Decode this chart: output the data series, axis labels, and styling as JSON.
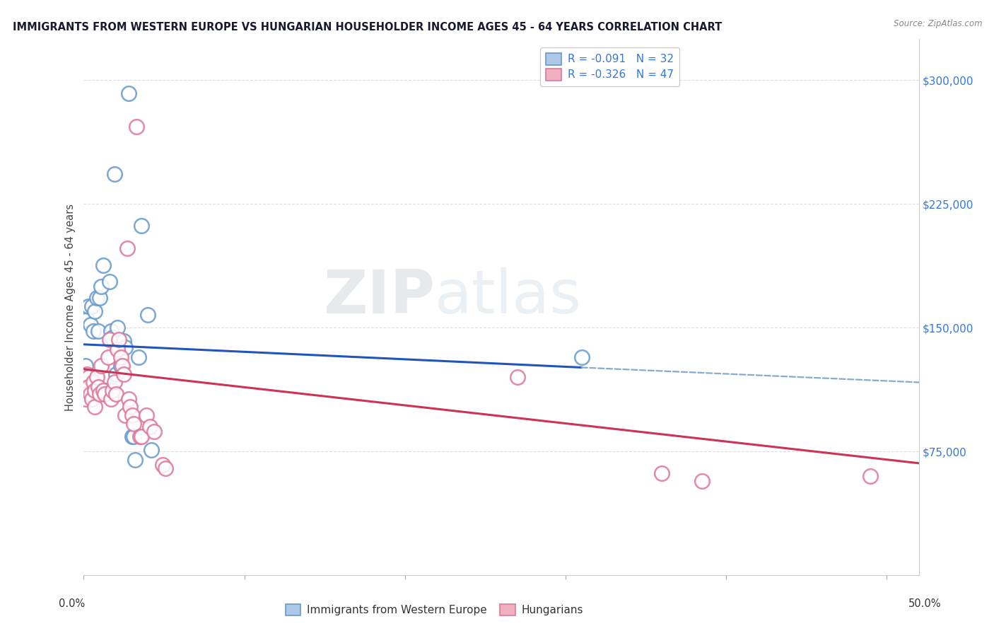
{
  "title": "IMMIGRANTS FROM WESTERN EUROPE VS HUNGARIAN HOUSEHOLDER INCOME AGES 45 - 64 YEARS CORRELATION CHART",
  "source": "Source: ZipAtlas.com",
  "ylabel": "Householder Income Ages 45 - 64 years",
  "ytick_labels": [
    "$75,000",
    "$150,000",
    "$225,000",
    "$300,000"
  ],
  "ytick_values": [
    75000,
    150000,
    225000,
    300000
  ],
  "ylim": [
    0,
    325000
  ],
  "xlim": [
    0.0,
    0.52
  ],
  "legend_r1": "R = -0.091",
  "legend_n1": "N = 32",
  "legend_r2": "R = -0.326",
  "legend_n2": "N = 47",
  "color_blue_face": "#adc8e8",
  "color_blue_edge": "#6699cc",
  "color_pink_face": "#f0b0c0",
  "color_pink_edge": "#dd7799",
  "line_blue": "#2255bb",
  "line_pink": "#cc3355",
  "line_dash_blue": "#88aacc",
  "watermark_zip": "ZIP",
  "watermark_atlas": "atlas",
  "background_color": "#ffffff",
  "grid_color": "#dddddd",
  "blue_points": [
    [
      0.001,
      127000
    ],
    [
      0.002,
      155000
    ],
    [
      0.003,
      163000
    ],
    [
      0.004,
      152000
    ],
    [
      0.005,
      163000
    ],
    [
      0.006,
      148000
    ],
    [
      0.007,
      160000
    ],
    [
      0.008,
      168000
    ],
    [
      0.009,
      148000
    ],
    [
      0.01,
      168000
    ],
    [
      0.011,
      175000
    ],
    [
      0.012,
      188000
    ],
    [
      0.014,
      112000
    ],
    [
      0.016,
      178000
    ],
    [
      0.017,
      148000
    ],
    [
      0.018,
      144000
    ],
    [
      0.019,
      243000
    ],
    [
      0.02,
      122000
    ],
    [
      0.021,
      150000
    ],
    [
      0.022,
      138000
    ],
    [
      0.023,
      127000
    ],
    [
      0.025,
      142000
    ],
    [
      0.026,
      138000
    ],
    [
      0.028,
      292000
    ],
    [
      0.03,
      84000
    ],
    [
      0.031,
      84000
    ],
    [
      0.032,
      70000
    ],
    [
      0.034,
      132000
    ],
    [
      0.036,
      212000
    ],
    [
      0.04,
      158000
    ],
    [
      0.042,
      76000
    ],
    [
      0.31,
      132000
    ]
  ],
  "pink_points": [
    [
      0.001,
      118000
    ],
    [
      0.001,
      113000
    ],
    [
      0.001,
      110000
    ],
    [
      0.001,
      107000
    ],
    [
      0.002,
      122000
    ],
    [
      0.003,
      120000
    ],
    [
      0.003,
      114000
    ],
    [
      0.004,
      110000
    ],
    [
      0.005,
      107000
    ],
    [
      0.006,
      117000
    ],
    [
      0.007,
      112000
    ],
    [
      0.007,
      102000
    ],
    [
      0.008,
      120000
    ],
    [
      0.009,
      114000
    ],
    [
      0.01,
      110000
    ],
    [
      0.011,
      127000
    ],
    [
      0.012,
      112000
    ],
    [
      0.013,
      110000
    ],
    [
      0.015,
      132000
    ],
    [
      0.016,
      143000
    ],
    [
      0.017,
      107000
    ],
    [
      0.018,
      112000
    ],
    [
      0.019,
      117000
    ],
    [
      0.02,
      110000
    ],
    [
      0.021,
      137000
    ],
    [
      0.022,
      143000
    ],
    [
      0.023,
      132000
    ],
    [
      0.024,
      127000
    ],
    [
      0.025,
      122000
    ],
    [
      0.026,
      97000
    ],
    [
      0.027,
      198000
    ],
    [
      0.028,
      107000
    ],
    [
      0.029,
      102000
    ],
    [
      0.03,
      97000
    ],
    [
      0.031,
      92000
    ],
    [
      0.033,
      272000
    ],
    [
      0.035,
      84000
    ],
    [
      0.036,
      84000
    ],
    [
      0.039,
      97000
    ],
    [
      0.041,
      90000
    ],
    [
      0.044,
      87000
    ],
    [
      0.049,
      67000
    ],
    [
      0.051,
      65000
    ],
    [
      0.27,
      120000
    ],
    [
      0.36,
      62000
    ],
    [
      0.385,
      57000
    ],
    [
      0.49,
      60000
    ]
  ],
  "blue_line_x0": 0.0,
  "blue_line_y0": 140000,
  "blue_line_x1": 0.31,
  "blue_line_y1": 126000,
  "blue_line_x2": 0.52,
  "blue_line_y2": 117000,
  "pink_line_x0": 0.0,
  "pink_line_y0": 125000,
  "pink_line_x1": 0.52,
  "pink_line_y1": 68000
}
